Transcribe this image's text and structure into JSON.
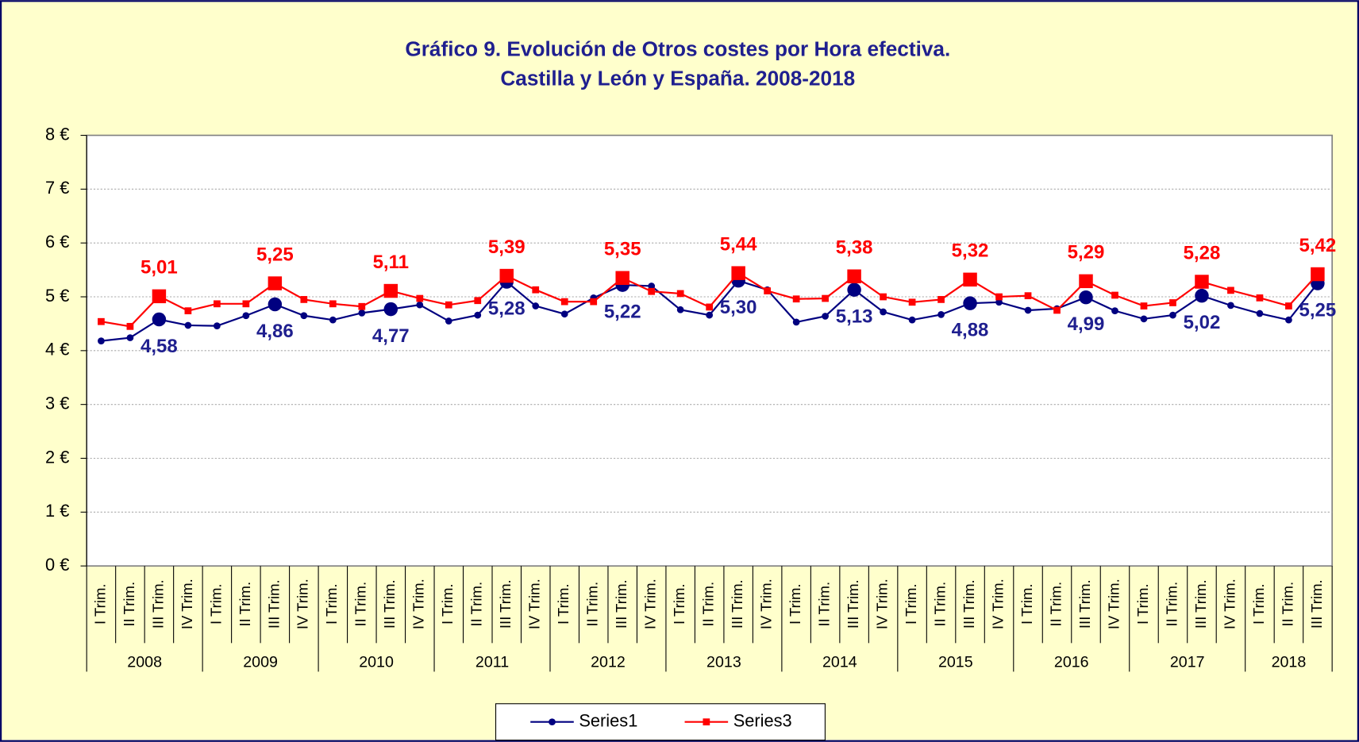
{
  "chart_data": {
    "type": "line",
    "title_lines": [
      "Gráfico 9. Evolución de Otros costes por Hora efectiva.",
      "Castilla y León y España. 2008-2018"
    ],
    "category_groups": [
      {
        "label": "2008",
        "categories": [
          "I Trim.",
          "II Trim.",
          "III Trim.",
          "IV Trim."
        ]
      },
      {
        "label": "2009",
        "categories": [
          "I Trim.",
          "II Trim.",
          "III Trim.",
          "IV Trim."
        ]
      },
      {
        "label": "2010",
        "categories": [
          "I Trim.",
          "II Trim.",
          "III Trim.",
          "IV Trim."
        ]
      },
      {
        "label": "2011",
        "categories": [
          "I Trim.",
          "II Trim.",
          "III Trim.",
          "IV Trim."
        ]
      },
      {
        "label": "2012",
        "categories": [
          "I Trim.",
          "II Trim.",
          "III Trim.",
          "IV Trim."
        ]
      },
      {
        "label": "2013",
        "categories": [
          "I Trim.",
          "II Trim.",
          "III Trim.",
          "IV Trim."
        ]
      },
      {
        "label": "2014",
        "categories": [
          "I Trim.",
          "II Trim.",
          "III Trim.",
          "IV Trim."
        ]
      },
      {
        "label": "2015",
        "categories": [
          "I Trim.",
          "II Trim.",
          "III Trim.",
          "IV Trim."
        ]
      },
      {
        "label": "2016",
        "categories": [
          "I Trim.",
          "II Trim.",
          "III Trim.",
          "IV Trim."
        ]
      },
      {
        "label": "2017",
        "categories": [
          "I Trim.",
          "II Trim.",
          "III Trim.",
          "IV Trim."
        ]
      },
      {
        "label": "2018",
        "categories": [
          "I Trim.",
          "II Trim.",
          "III Trim."
        ]
      }
    ],
    "series": [
      {
        "name": "Series1",
        "color": "#000080",
        "marker": "circle",
        "values": [
          4.18,
          4.24,
          4.58,
          4.47,
          4.46,
          4.65,
          4.86,
          4.65,
          4.57,
          4.7,
          4.77,
          4.85,
          4.55,
          4.66,
          5.28,
          4.83,
          4.68,
          4.98,
          5.22,
          5.2,
          4.76,
          4.66,
          5.3,
          5.13,
          4.53,
          4.64,
          5.13,
          4.72,
          4.57,
          4.67,
          4.88,
          4.9,
          4.75,
          4.78,
          4.99,
          4.74,
          4.59,
          4.66,
          5.02,
          4.84,
          4.69,
          4.57,
          5.25
        ],
        "value_labels": [
          null,
          null,
          "4,58",
          null,
          null,
          null,
          "4,86",
          null,
          null,
          null,
          "4,77",
          null,
          null,
          null,
          "5,28",
          null,
          null,
          null,
          "5,22",
          null,
          null,
          null,
          "5,30",
          null,
          null,
          null,
          "5,13",
          null,
          null,
          null,
          "4,88",
          null,
          null,
          null,
          "4,99",
          null,
          null,
          null,
          "5,02",
          null,
          null,
          null,
          "5,25"
        ]
      },
      {
        "name": "Series3",
        "color": "#ff0000",
        "marker": "square",
        "values": [
          4.54,
          4.45,
          5.01,
          4.74,
          4.87,
          4.87,
          5.25,
          4.95,
          4.87,
          4.82,
          5.11,
          4.97,
          4.85,
          4.93,
          5.39,
          5.13,
          4.91,
          4.91,
          5.35,
          5.1,
          5.06,
          4.81,
          5.44,
          5.11,
          4.96,
          4.97,
          5.38,
          5.0,
          4.9,
          4.95,
          5.32,
          5.0,
          5.02,
          4.75,
          5.29,
          5.03,
          4.83,
          4.89,
          5.28,
          5.12,
          4.98,
          4.83,
          5.42
        ],
        "value_labels": [
          null,
          null,
          "5,01",
          null,
          null,
          null,
          "5,25",
          null,
          null,
          null,
          "5,11",
          null,
          null,
          null,
          "5,39",
          null,
          null,
          null,
          "5,35",
          null,
          null,
          null,
          "5,44",
          null,
          null,
          null,
          "5,38",
          null,
          null,
          null,
          "5,32",
          null,
          null,
          null,
          "5,29",
          null,
          null,
          null,
          "5,28",
          null,
          null,
          null,
          "5,42"
        ]
      }
    ],
    "ylim": [
      0,
      8
    ],
    "yticks": [
      {
        "value": 0,
        "label": "0 €"
      },
      {
        "value": 1,
        "label": "1 €"
      },
      {
        "value": 2,
        "label": "2 €"
      },
      {
        "value": 3,
        "label": "3 €"
      },
      {
        "value": 4,
        "label": "4 €"
      },
      {
        "value": 5,
        "label": "5 €"
      },
      {
        "value": 6,
        "label": "6 €"
      },
      {
        "value": 7,
        "label": "7 €"
      },
      {
        "value": 8,
        "label": "8 €"
      }
    ],
    "grid": true,
    "legend": "bottom"
  }
}
